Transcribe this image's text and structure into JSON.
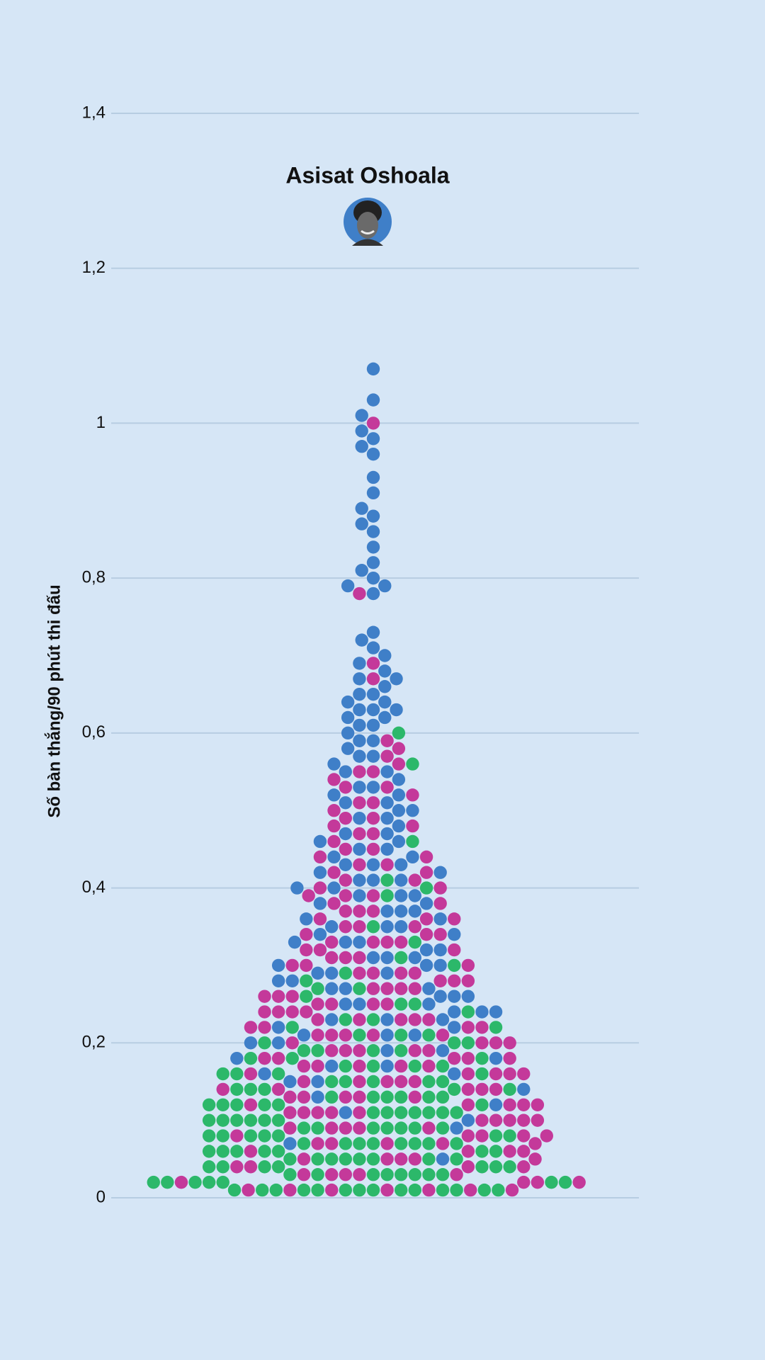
{
  "chart_data": {
    "type": "beeswarm",
    "title": "Asisat Oshoala",
    "y_label": "Số bàn thắng/90 phút thi đấu",
    "ylim": [
      0,
      1.4
    ],
    "yticks": [
      0,
      {
        "value": 0.2,
        "label": "0,2"
      },
      {
        "value": 0.4,
        "label": "0,4"
      },
      {
        "value": 0.6,
        "label": "0,6"
      },
      {
        "value": 0.8,
        "label": "0,8"
      },
      1,
      {
        "value": 1.2,
        "label": "1,2"
      },
      {
        "value": 1.4,
        "label": "1,4"
      }
    ],
    "grid": true,
    "series": [
      {
        "color": "#3f7fc8",
        "values": [
          1.07,
          1.03,
          1.01,
          0.99,
          0.98,
          0.97,
          0.96,
          0.93,
          0.91,
          0.89,
          0.88,
          0.87,
          0.86,
          0.84,
          0.82,
          0.81,
          0.8,
          0.79,
          0.79,
          0.78,
          0.73,
          0.72,
          0.71,
          0.7,
          0.69,
          0.68,
          0.67,
          0.67,
          0.66,
          0.65,
          0.65,
          0.64,
          0.64,
          0.63,
          0.63,
          0.62,
          0.62,
          0.63,
          0.61,
          0.6,
          0.61,
          0.59,
          0.58,
          0.59,
          0.57,
          0.56,
          0.57,
          0.55,
          0.54,
          0.55,
          0.53,
          0.52,
          0.53,
          0.52,
          0.51,
          0.5,
          0.51,
          0.5,
          0.49,
          0.48,
          0.49,
          0.47,
          0.46,
          0.47,
          0.46,
          0.45,
          0.44,
          0.45,
          0.44,
          0.43,
          0.42,
          0.43,
          0.42,
          0.43,
          0.41,
          0.4,
          0.41,
          0.4,
          0.41,
          0.39,
          0.38,
          0.39,
          0.38,
          0.39,
          0.37,
          0.36,
          0.37,
          0.36,
          0.37,
          0.35,
          0.34,
          0.35,
          0.34,
          0.35,
          0.33,
          0.32,
          0.33,
          0.32,
          0.33,
          0.31,
          0.3,
          0.31,
          0.3,
          0.31,
          0.3,
          0.29,
          0.28,
          0.29,
          0.28,
          0.29,
          0.27,
          0.26,
          0.27,
          0.26,
          0.27,
          0.26,
          0.25,
          0.24,
          0.25,
          0.24,
          0.25,
          0.24,
          0.23,
          0.22,
          0.23,
          0.22,
          0.23,
          0.21,
          0.2,
          0.21,
          0.2,
          0.21,
          0.19,
          0.18,
          0.19,
          0.18,
          0.17,
          0.16,
          0.17,
          0.16,
          0.15,
          0.14,
          0.15,
          0.13,
          0.12,
          0.11,
          0.1,
          0.09,
          0.07,
          0.05
        ]
      },
      {
        "color": "#c4399a",
        "values": [
          1.0,
          0.78,
          0.69,
          0.67,
          0.59,
          0.58,
          0.57,
          0.56,
          0.55,
          0.54,
          0.55,
          0.53,
          0.52,
          0.53,
          0.51,
          0.5,
          0.51,
          0.49,
          0.48,
          0.49,
          0.48,
          0.47,
          0.46,
          0.47,
          0.45,
          0.44,
          0.45,
          0.44,
          0.43,
          0.42,
          0.43,
          0.42,
          0.41,
          0.4,
          0.41,
          0.4,
          0.39,
          0.38,
          0.39,
          0.38,
          0.39,
          0.37,
          0.36,
          0.37,
          0.36,
          0.37,
          0.36,
          0.35,
          0.34,
          0.35,
          0.34,
          0.35,
          0.34,
          0.33,
          0.32,
          0.33,
          0.32,
          0.33,
          0.32,
          0.33,
          0.31,
          0.3,
          0.31,
          0.3,
          0.31,
          0.3,
          0.29,
          0.28,
          0.29,
          0.28,
          0.29,
          0.28,
          0.29,
          0.27,
          0.26,
          0.27,
          0.26,
          0.27,
          0.26,
          0.27,
          0.25,
          0.24,
          0.25,
          0.24,
          0.25,
          0.24,
          0.25,
          0.24,
          0.23,
          0.22,
          0.23,
          0.22,
          0.23,
          0.22,
          0.23,
          0.22,
          0.23,
          0.21,
          0.2,
          0.21,
          0.2,
          0.21,
          0.2,
          0.21,
          0.2,
          0.21,
          0.19,
          0.18,
          0.19,
          0.18,
          0.19,
          0.18,
          0.19,
          0.18,
          0.19,
          0.18,
          0.17,
          0.16,
          0.17,
          0.16,
          0.17,
          0.16,
          0.17,
          0.16,
          0.17,
          0.16,
          0.15,
          0.14,
          0.15,
          0.14,
          0.15,
          0.14,
          0.15,
          0.14,
          0.15,
          0.14,
          0.13,
          0.12,
          0.13,
          0.12,
          0.13,
          0.12,
          0.13,
          0.12,
          0.13,
          0.12,
          0.11,
          0.1,
          0.11,
          0.1,
          0.11,
          0.1,
          0.11,
          0.1,
          0.11,
          0.1,
          0.09,
          0.08,
          0.09,
          0.08,
          0.09,
          0.08,
          0.09,
          0.08,
          0.09,
          0.08,
          0.07,
          0.06,
          0.07,
          0.06,
          0.07,
          0.06,
          0.07,
          0.06,
          0.07,
          0.05,
          0.04,
          0.05,
          0.04,
          0.05,
          0.04,
          0.05,
          0.04,
          0.05,
          0.03,
          0.02,
          0.03,
          0.02,
          0.03,
          0.02,
          0.03,
          0.02,
          0.03,
          0.01,
          0.01,
          0.01,
          0.01,
          0.01,
          0.01,
          0.01
        ]
      },
      {
        "color": "#2cb86a",
        "values": [
          0.6,
          0.56,
          0.46,
          0.41,
          0.4,
          0.39,
          0.35,
          0.33,
          0.31,
          0.3,
          0.29,
          0.28,
          0.27,
          0.26,
          0.27,
          0.25,
          0.24,
          0.25,
          0.23,
          0.22,
          0.23,
          0.22,
          0.21,
          0.2,
          0.21,
          0.2,
          0.21,
          0.2,
          0.19,
          0.18,
          0.19,
          0.18,
          0.19,
          0.18,
          0.19,
          0.17,
          0.16,
          0.17,
          0.16,
          0.17,
          0.16,
          0.17,
          0.16,
          0.15,
          0.14,
          0.15,
          0.14,
          0.15,
          0.14,
          0.15,
          0.14,
          0.15,
          0.14,
          0.13,
          0.12,
          0.13,
          0.12,
          0.13,
          0.12,
          0.13,
          0.12,
          0.13,
          0.12,
          0.13,
          0.12,
          0.11,
          0.1,
          0.11,
          0.1,
          0.11,
          0.1,
          0.11,
          0.1,
          0.11,
          0.1,
          0.11,
          0.1,
          0.11,
          0.09,
          0.08,
          0.09,
          0.08,
          0.09,
          0.08,
          0.09,
          0.08,
          0.09,
          0.08,
          0.09,
          0.08,
          0.09,
          0.08,
          0.07,
          0.06,
          0.07,
          0.06,
          0.07,
          0.06,
          0.07,
          0.06,
          0.07,
          0.06,
          0.07,
          0.06,
          0.07,
          0.06,
          0.07,
          0.05,
          0.04,
          0.05,
          0.04,
          0.05,
          0.04,
          0.05,
          0.04,
          0.05,
          0.04,
          0.05,
          0.04,
          0.05,
          0.04,
          0.05,
          0.03,
          0.02,
          0.03,
          0.02,
          0.03,
          0.02,
          0.03,
          0.02,
          0.03,
          0.02,
          0.03,
          0.02,
          0.03,
          0.02,
          0.03,
          0.01,
          0.01,
          0.01,
          0.01,
          0.01,
          0.01,
          0.01,
          0.01,
          0.01,
          0.01,
          0.01,
          0.01,
          0.01,
          0.01
        ]
      }
    ]
  }
}
